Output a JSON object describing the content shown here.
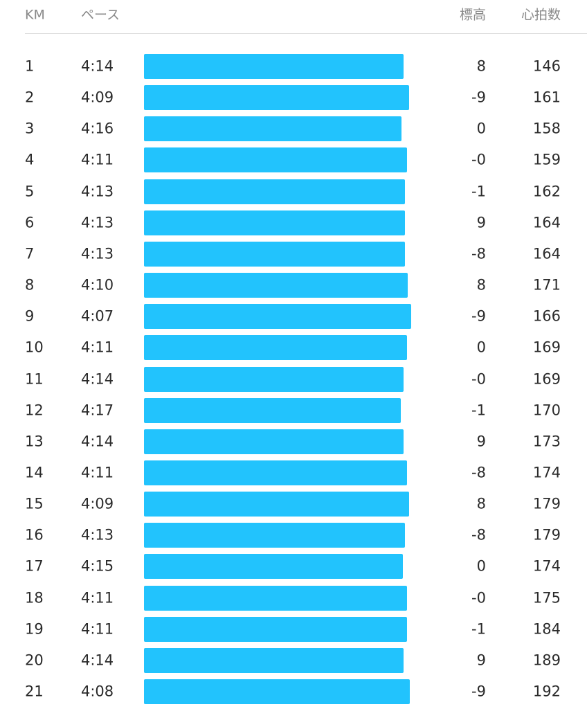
{
  "header": [
    "KM",
    "ペース",
    "標高",
    "心拍数"
  ],
  "rows": [
    [
      "1",
      "4:14",
      "8",
      "146"
    ],
    [
      "2",
      "4:09",
      "-9",
      "161"
    ],
    [
      "3",
      "4:16",
      "0",
      "158"
    ],
    [
      "4",
      "4:11",
      "-0",
      "159"
    ],
    [
      "5",
      "4:13",
      "-1",
      "162"
    ],
    [
      "6",
      "4:13",
      "9",
      "164"
    ],
    [
      "7",
      "4:13",
      "-8",
      "164"
    ],
    [
      "8",
      "4:10",
      "8",
      "171"
    ],
    [
      "9",
      "4:07",
      "-9",
      "166"
    ],
    [
      "10",
      "4:11",
      "0",
      "169"
    ],
    [
      "11",
      "4:14",
      "-0",
      "169"
    ],
    [
      "12",
      "4:17",
      "-1",
      "170"
    ],
    [
      "13",
      "4:14",
      "9",
      "173"
    ],
    [
      "14",
      "4:11",
      "-8",
      "174"
    ],
    [
      "15",
      "4:09",
      "8",
      "179"
    ],
    [
      "16",
      "4:13",
      "-8",
      "179"
    ],
    [
      "17",
      "4:15",
      "0",
      "174"
    ],
    [
      "18",
      "4:11",
      "-0",
      "175"
    ],
    [
      "19",
      "4:11",
      "-1",
      "184"
    ],
    [
      "20",
      "4:14",
      "9",
      "189"
    ],
    [
      "21",
      "4:08",
      "-9",
      "192"
    ]
  ]
}
